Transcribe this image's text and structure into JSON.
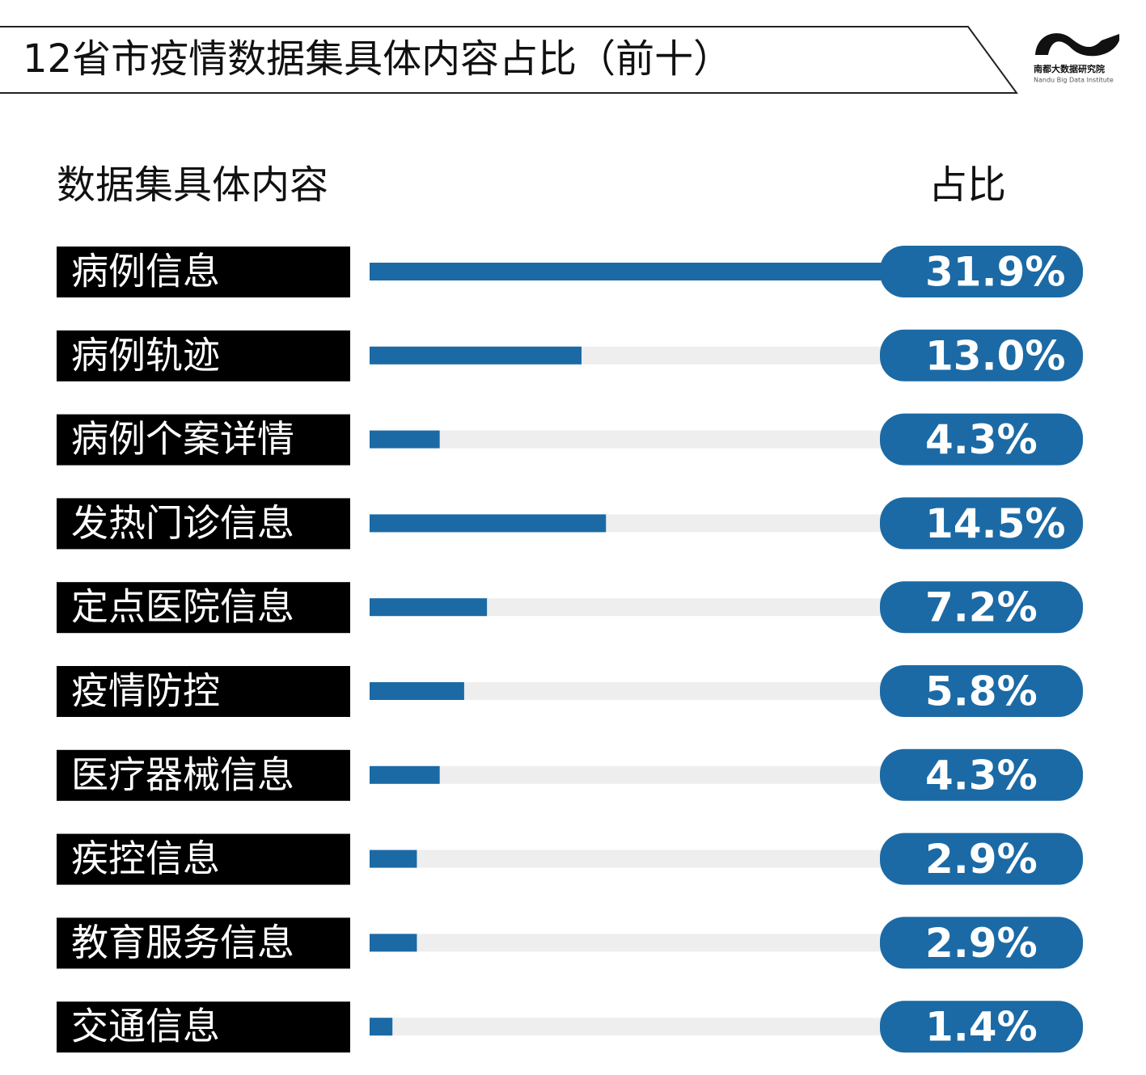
{
  "brand": {
    "name": "南都大数据研究院",
    "subtitle": "Nandu Big Data Institute"
  },
  "chart_data": {
    "type": "hbar",
    "title": "12省市疫情数据集具体内容占比（前十）",
    "category_header": "数据集具体内容",
    "value_header": "占比",
    "categories": [
      "病例信息",
      "病例轨迹",
      "病例个案详情",
      "发热门诊信息",
      "定点医院信息",
      "疫情防控",
      "医疗器械信息",
      "疾控信息",
      "教育服务信息",
      "交通信息"
    ],
    "values": [
      31.9,
      13.0,
      4.3,
      14.5,
      7.2,
      5.8,
      4.3,
      2.9,
      2.9,
      1.4
    ],
    "value_labels": [
      "31.9%",
      "13.0%",
      "4.3%",
      "14.5%",
      "7.2%",
      "5.8%",
      "4.3%",
      "2.9%",
      "2.9%",
      "1.4%"
    ],
    "color": "#1b6aa5",
    "track_color": "#eeeeee"
  }
}
